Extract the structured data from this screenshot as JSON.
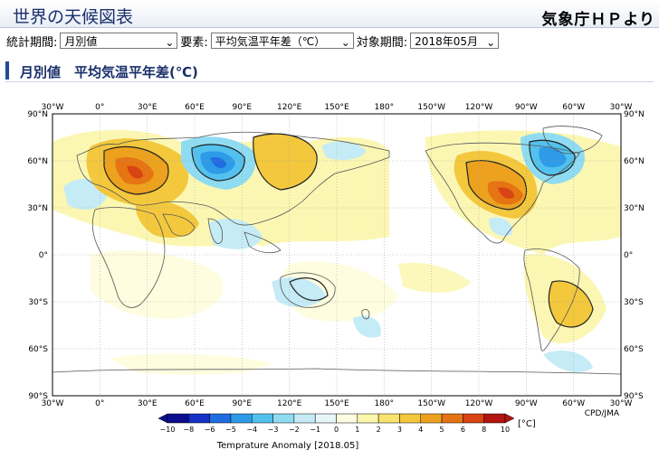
{
  "header": {
    "title": "世界の天候図表",
    "jma_link": "気象庁ＨＰより"
  },
  "controls": {
    "stat_period_label": "統計期間:",
    "stat_period_value": "月別値",
    "element_label": "要素:",
    "element_value": "平均気温平年差（℃）",
    "target_period_label": "対象期間:",
    "target_period_value": "2018年05月"
  },
  "section": {
    "title": "月別値　平均気温平年差(℃)"
  },
  "map": {
    "lon_labels": [
      "30°W",
      "0°",
      "30°E",
      "60°E",
      "90°E",
      "120°E",
      "150°E",
      "180°",
      "150°W",
      "120°W",
      "90°W",
      "60°W",
      "30°W"
    ],
    "lat_labels": [
      "90°N",
      "60°N",
      "30°N",
      "0°",
      "30°S",
      "60°S",
      "90°S"
    ],
    "credit": "CPD/JMA",
    "legend": {
      "ticks": [
        "−10",
        "−8",
        "−6",
        "−5",
        "−4",
        "−3",
        "−2",
        "−1",
        "0",
        "1",
        "2",
        "3",
        "4",
        "5",
        "6",
        "8",
        "10"
      ],
      "colors": [
        "#0b0e8c",
        "#1531c6",
        "#1f6de0",
        "#2e9be8",
        "#52c1ee",
        "#8fdcf2",
        "#c5ecf6",
        "#e6f6f9",
        "#fffde0",
        "#fbf6ab",
        "#f8e36e",
        "#f3c83d",
        "#eca21e",
        "#e67413",
        "#d84413",
        "#b31410"
      ],
      "unit": "[°C]",
      "caption": "Temprature Anomaly [2018.05]"
    }
  }
}
